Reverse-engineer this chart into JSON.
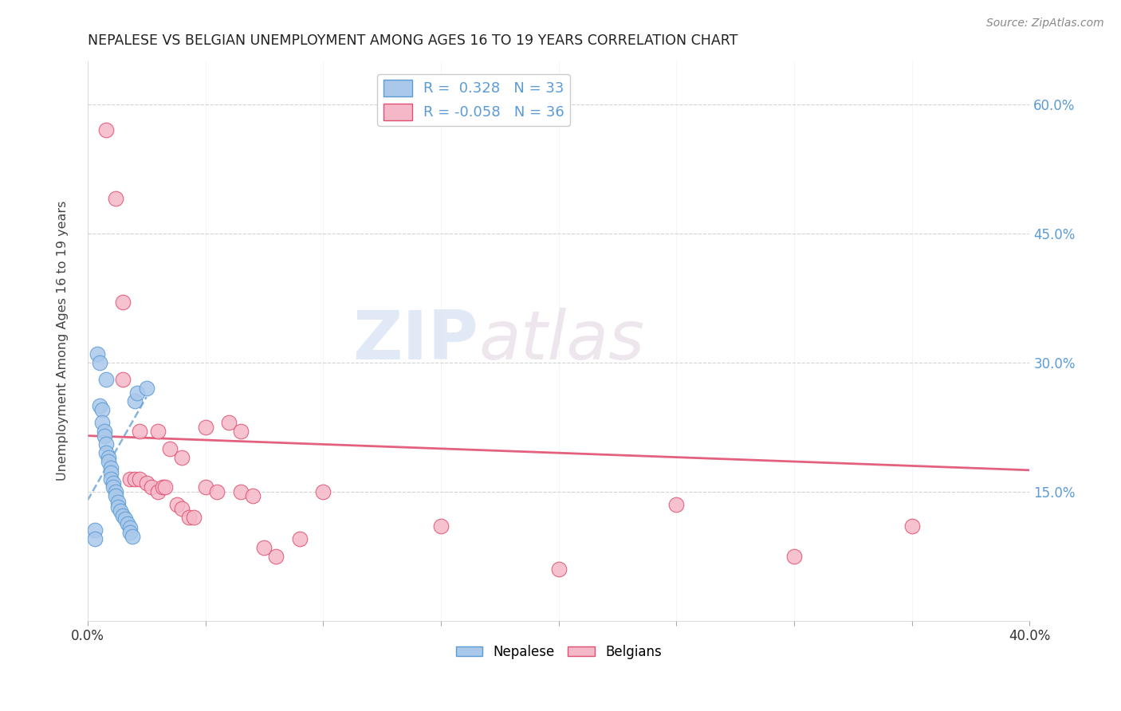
{
  "title": "NEPALESE VS BELGIAN UNEMPLOYMENT AMONG AGES 16 TO 19 YEARS CORRELATION CHART",
  "source": "Source: ZipAtlas.com",
  "ylabel": "Unemployment Among Ages 16 to 19 years",
  "watermark_zip": "ZIP",
  "watermark_atlas": "atlas",
  "r_nepalese": 0.328,
  "n_nepalese": 33,
  "r_belgians": -0.058,
  "n_belgians": 36,
  "xlim": [
    0.0,
    0.4
  ],
  "ylim": [
    0.0,
    0.65
  ],
  "yticks": [
    0.15,
    0.3,
    0.45,
    0.6
  ],
  "ytick_labels": [
    "15.0%",
    "30.0%",
    "45.0%",
    "60.0%"
  ],
  "xticks": [
    0.0,
    0.05,
    0.1,
    0.15,
    0.2,
    0.25,
    0.3,
    0.35,
    0.4
  ],
  "nepalese_color": "#aac8ea",
  "belgians_color": "#f5b8c8",
  "trend_blue": "#5b9bd5",
  "trend_pink": "#e05070",
  "background": "#ffffff",
  "nepalese_x": [
    0.003,
    0.004,
    0.005,
    0.005,
    0.006,
    0.006,
    0.007,
    0.007,
    0.008,
    0.008,
    0.009,
    0.009,
    0.01,
    0.01,
    0.01,
    0.011,
    0.011,
    0.012,
    0.012,
    0.013,
    0.013,
    0.014,
    0.015,
    0.016,
    0.017,
    0.018,
    0.018,
    0.019,
    0.02,
    0.021,
    0.003,
    0.025,
    0.008
  ],
  "nepalese_y": [
    0.105,
    0.31,
    0.3,
    0.25,
    0.245,
    0.23,
    0.22,
    0.215,
    0.205,
    0.195,
    0.19,
    0.185,
    0.178,
    0.172,
    0.165,
    0.16,
    0.155,
    0.15,
    0.145,
    0.138,
    0.132,
    0.128,
    0.122,
    0.118,
    0.113,
    0.108,
    0.103,
    0.098,
    0.255,
    0.265,
    0.095,
    0.27,
    0.28
  ],
  "belgians_x": [
    0.008,
    0.012,
    0.015,
    0.018,
    0.02,
    0.022,
    0.022,
    0.025,
    0.027,
    0.03,
    0.03,
    0.032,
    0.033,
    0.035,
    0.038,
    0.04,
    0.04,
    0.043,
    0.045,
    0.05,
    0.05,
    0.055,
    0.06,
    0.065,
    0.065,
    0.07,
    0.075,
    0.08,
    0.09,
    0.1,
    0.15,
    0.2,
    0.25,
    0.3,
    0.35,
    0.015
  ],
  "belgians_y": [
    0.57,
    0.49,
    0.37,
    0.165,
    0.165,
    0.165,
    0.22,
    0.16,
    0.155,
    0.15,
    0.22,
    0.155,
    0.155,
    0.2,
    0.135,
    0.13,
    0.19,
    0.12,
    0.12,
    0.155,
    0.225,
    0.15,
    0.23,
    0.15,
    0.22,
    0.145,
    0.085,
    0.075,
    0.095,
    0.15,
    0.11,
    0.06,
    0.135,
    0.075,
    0.11,
    0.28
  ],
  "trend_blue_x0": 0.0,
  "trend_blue_y0": 0.14,
  "trend_blue_x1": 0.025,
  "trend_blue_y1": 0.26,
  "trend_pink_x0": 0.0,
  "trend_pink_y0": 0.215,
  "trend_pink_x1": 0.4,
  "trend_pink_y1": 0.175
}
